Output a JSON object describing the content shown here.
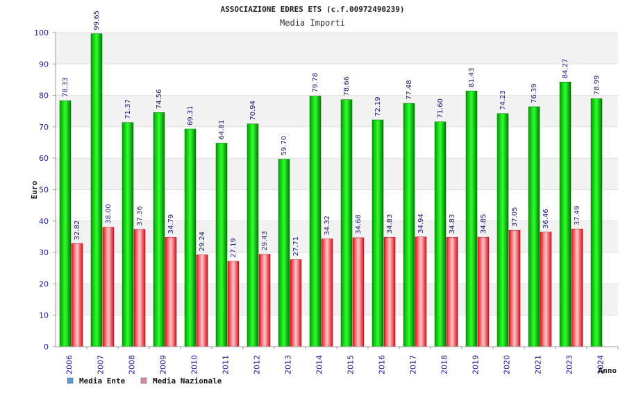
{
  "chart_data": {
    "type": "bar",
    "title": "ASSOCIAZIONE EDRES ETS (c.f.00972490239)",
    "subtitle": "Media Importi",
    "ylabel": "Euro",
    "xlabel": "Anno",
    "ylim": [
      0,
      100
    ],
    "yticks": [
      "0",
      "10",
      "20",
      "30",
      "40",
      "50",
      "60",
      "70",
      "80",
      "90",
      "100"
    ],
    "grid": true,
    "legend_placement": "bottom-left",
    "categories": [
      "2006",
      "2007",
      "2008",
      "2009",
      "2010",
      "2011",
      "2012",
      "2013",
      "2014",
      "2015",
      "2016",
      "2017",
      "2018",
      "2019",
      "2020",
      "2021",
      "2023",
      "2024"
    ],
    "series": [
      {
        "name": "Media Ente",
        "color": "#00b000",
        "legend_color": "#5b9bd5",
        "values": [
          78.33,
          99.65,
          71.37,
          74.56,
          69.31,
          64.81,
          70.94,
          59.7,
          79.78,
          78.66,
          72.19,
          77.48,
          71.6,
          81.43,
          74.23,
          76.39,
          84.27,
          78.99
        ],
        "labels": [
          "78.33",
          "99.65",
          "71.37",
          "74.56",
          "69.31",
          "64.81",
          "70.94",
          "59.70",
          "79.78",
          "78.66",
          "72.19",
          "77.48",
          "71.60",
          "81.43",
          "74.23",
          "76.39",
          "84.27",
          "78.99"
        ]
      },
      {
        "name": "Media Nazionale",
        "color": "#e8202a",
        "legend_color": "#d48aa8",
        "values": [
          32.82,
          38.0,
          37.36,
          34.79,
          29.24,
          27.19,
          29.43,
          27.71,
          34.32,
          34.68,
          34.83,
          34.94,
          34.83,
          34.85,
          37.05,
          36.46,
          37.49,
          null
        ],
        "labels": [
          "32.82",
          "38.00",
          "37.36",
          "34.79",
          "29.24",
          "27.19",
          "29.43",
          "27.71",
          "34.32",
          "34.68",
          "34.83",
          "34.94",
          "34.83",
          "34.85",
          "37.05",
          "36.46",
          "37.49",
          ""
        ]
      }
    ]
  }
}
